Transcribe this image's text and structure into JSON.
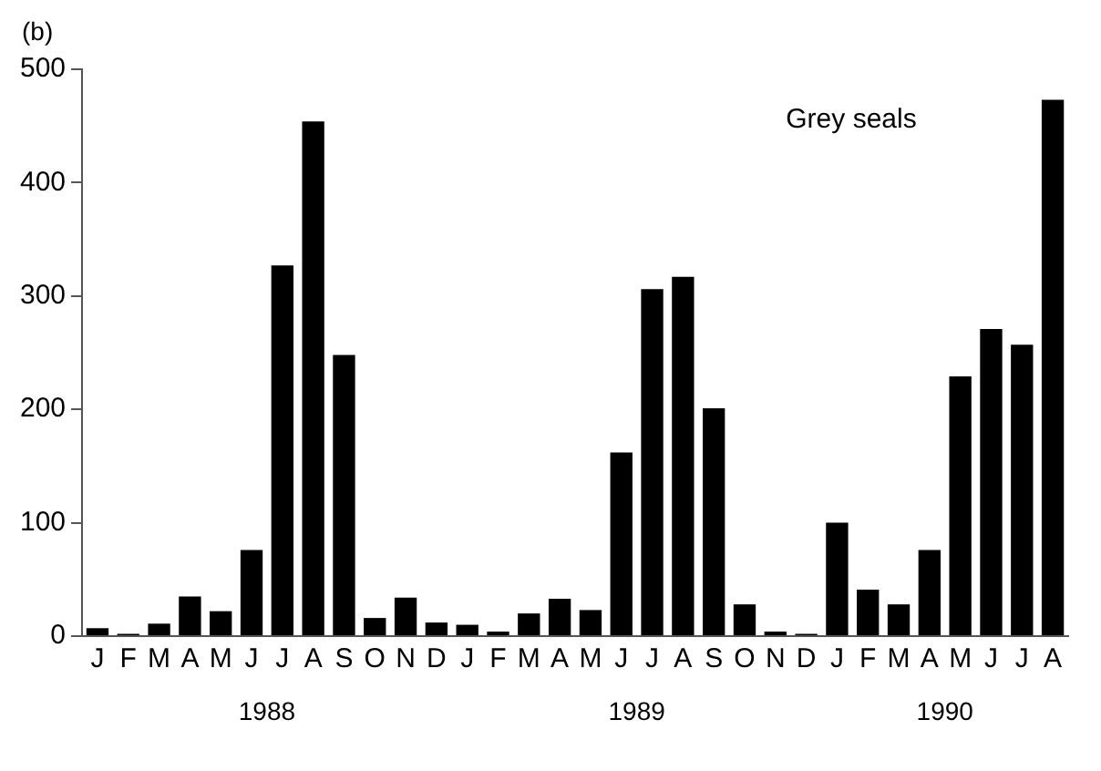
{
  "chart_data": {
    "type": "bar",
    "title": "Grey seals",
    "categories": [
      "J",
      "F",
      "M",
      "A",
      "M",
      "J",
      "J",
      "A",
      "S",
      "O",
      "N",
      "D",
      "J",
      "F",
      "M",
      "A",
      "M",
      "J",
      "J",
      "A",
      "S",
      "O",
      "N",
      "D",
      "J",
      "F",
      "M",
      "A",
      "M",
      "J",
      "J",
      "A"
    ],
    "values": [
      7,
      2,
      11,
      35,
      22,
      76,
      327,
      454,
      248,
      16,
      34,
      12,
      10,
      4,
      20,
      33,
      23,
      162,
      306,
      317,
      201,
      28,
      4,
      2,
      100,
      41,
      28,
      76,
      229,
      271,
      257,
      473
    ],
    "color": "#000000",
    "ylim": [
      0,
      500
    ],
    "yticks": [
      0,
      100,
      200,
      300,
      400,
      500
    ],
    "grid": false,
    "annotations": [
      "(b)",
      {
        "text": "1988"
      },
      {
        "text": "1989"
      },
      {
        "text": "1990"
      }
    ]
  }
}
